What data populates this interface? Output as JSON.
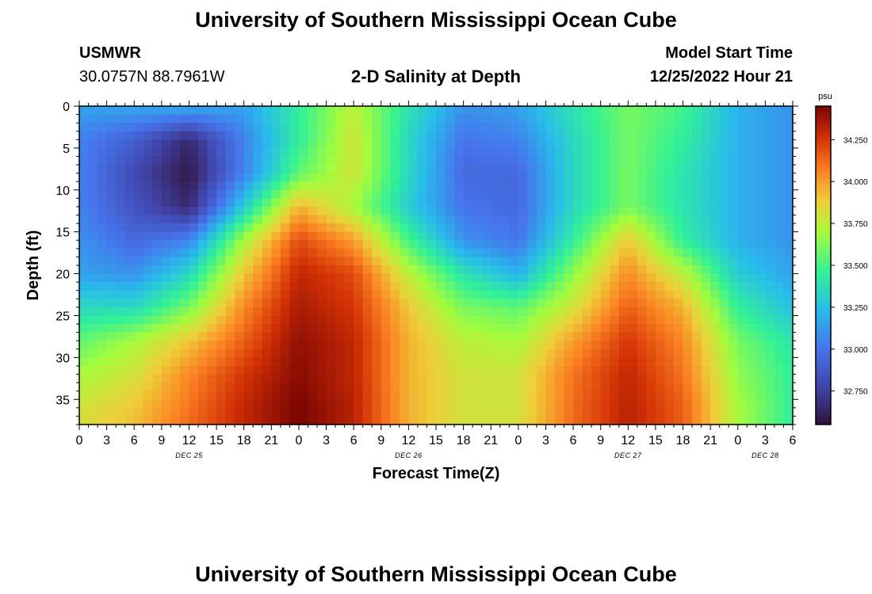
{
  "header": {
    "title": "University of Southern Mississippi Ocean Cube",
    "station": "USMWR",
    "coords": "30.0757N  88.7961W",
    "subtitle": "2-D Salinity at Depth",
    "model_label": "Model Start Time",
    "model_time": "12/25/2022 Hour 21"
  },
  "footer": {
    "title": "University of Southern Mississippi Ocean Cube"
  },
  "chart_data": {
    "type": "heatmap",
    "title": "2-D Salinity at Depth",
    "xlabel": "Forecast Time(Z)",
    "ylabel": "Depth (ft)",
    "x_range_hours": [
      0,
      78
    ],
    "x_note": "hours since 12/25/2022 00Z",
    "ylim": [
      0,
      38
    ],
    "y_ticks": [
      0,
      5,
      10,
      15,
      20,
      25,
      30,
      35
    ],
    "x_tick_hours": [
      0,
      3,
      6,
      9,
      12,
      15,
      18,
      21,
      24,
      27,
      30,
      33,
      36,
      39,
      42,
      45,
      48,
      51,
      54,
      57,
      60,
      63,
      66,
      69,
      72,
      75,
      78
    ],
    "x_tick_labels": [
      "0",
      "3",
      "6",
      "9",
      "12",
      "15",
      "18",
      "21",
      "0",
      "3",
      "6",
      "9",
      "12",
      "15",
      "18",
      "21",
      "0",
      "3",
      "6",
      "9",
      "12",
      "15",
      "18",
      "21",
      "0",
      "3",
      "6"
    ],
    "day_labels": [
      {
        "label": "DEC 25",
        "hour": 12
      },
      {
        "label": "DEC 26",
        "hour": 36
      },
      {
        "label": "DEC 27",
        "hour": 60
      },
      {
        "label": "DEC 28",
        "hour": 75
      }
    ],
    "colorbar": {
      "unit": "psu",
      "min": 32.55,
      "max": 34.45,
      "ticks": [
        "32.750",
        "33.000",
        "33.250",
        "33.500",
        "33.750",
        "34.000",
        "34.250"
      ]
    },
    "grid_hours": [
      0,
      6,
      12,
      18,
      24,
      30,
      36,
      42,
      48,
      54,
      60,
      66,
      72,
      78
    ],
    "grid_depths": [
      0,
      4,
      8,
      12,
      16,
      20,
      24,
      28,
      32,
      36,
      38
    ],
    "salinity": [
      [
        33.15,
        33.18,
        33.2,
        33.15,
        33.45,
        33.75,
        33.4,
        33.1,
        33.15,
        33.4,
        33.6,
        33.5,
        33.2,
        33.1
      ],
      [
        33.05,
        32.9,
        32.65,
        33.05,
        33.45,
        33.8,
        33.35,
        33.0,
        33.05,
        33.35,
        33.6,
        33.45,
        33.2,
        33.1
      ],
      [
        33.05,
        32.8,
        32.58,
        33.05,
        33.55,
        33.8,
        33.35,
        32.95,
        32.95,
        33.35,
        33.6,
        33.4,
        33.2,
        33.1
      ],
      [
        33.05,
        32.85,
        32.65,
        33.3,
        33.95,
        33.7,
        33.3,
        33.0,
        32.95,
        33.35,
        33.6,
        33.4,
        33.2,
        33.1
      ],
      [
        33.1,
        32.95,
        33.05,
        33.7,
        34.2,
        34.0,
        33.5,
        33.1,
        33.0,
        33.45,
        33.9,
        33.45,
        33.2,
        33.1
      ],
      [
        33.15,
        33.1,
        33.35,
        33.9,
        34.3,
        34.2,
        33.75,
        33.4,
        33.2,
        33.65,
        34.05,
        33.75,
        33.3,
        33.15
      ],
      [
        33.35,
        33.35,
        33.6,
        34.05,
        34.35,
        34.25,
        33.9,
        33.6,
        33.55,
        33.8,
        34.15,
        33.95,
        33.45,
        33.25
      ],
      [
        33.55,
        33.7,
        33.9,
        34.15,
        34.4,
        34.3,
        33.95,
        33.75,
        33.7,
        34.0,
        34.25,
        34.05,
        33.6,
        33.4
      ],
      [
        33.7,
        33.8,
        34.05,
        34.25,
        34.42,
        34.3,
        33.95,
        33.8,
        33.8,
        34.1,
        34.3,
        34.1,
        33.65,
        33.45
      ],
      [
        33.8,
        33.9,
        34.1,
        34.3,
        34.45,
        34.32,
        33.95,
        33.8,
        33.8,
        34.12,
        34.32,
        34.15,
        33.7,
        33.45
      ],
      [
        33.82,
        33.92,
        34.12,
        34.3,
        34.45,
        34.32,
        33.95,
        33.8,
        33.82,
        34.12,
        34.32,
        34.15,
        33.7,
        33.45
      ]
    ]
  }
}
